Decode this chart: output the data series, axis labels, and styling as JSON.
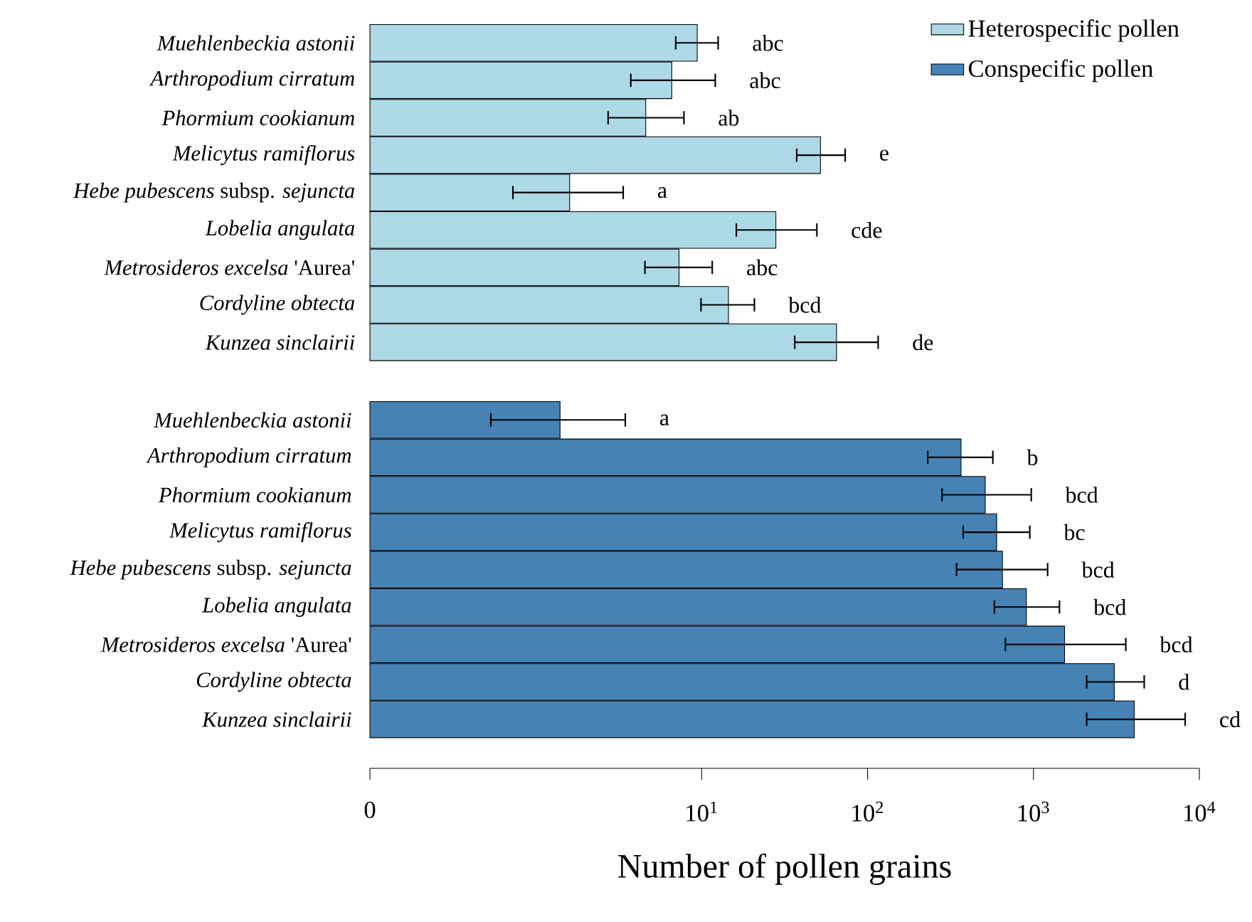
{
  "chart_data": [
    {
      "type": "bar",
      "orientation": "horizontal",
      "tick_labels": "y",
      "legend": "top right",
      "categories": [
        "*Muehlenbeckia astonii*",
        "*Arthropodium cirratum*",
        "*Phormium cookianum*",
        "*Melicytus ramiflorus*",
        "*Hebe pubescens* subsp. *sejuncta*",
        "*Lobelia angulata*",
        "*Metrosideros excelsa* 'Aurea'",
        "*Cordyline obtecta*",
        "*Kunzea sinclairii*"
      ],
      "series": [
        {
          "name": "Heterospecific pollen",
          "color": "#add8e6",
          "values": [
            9.4,
            6.6,
            4.6,
            52,
            1.6,
            28,
            7.3,
            14.5,
            65
          ],
          "errors": [
            [
              6.9,
              12.7
            ],
            [
              3.7,
              12.2
            ],
            [
              2.7,
              7.9
            ],
            [
              37,
              74
            ],
            [
              0.72,
              3.4
            ],
            [
              16,
              50
            ],
            [
              4.5,
              11.7
            ],
            [
              9.8,
              21
            ],
            [
              36,
              117
            ]
          ]
        }
      ],
      "log": "x",
      "xlim": [
        0.1,
        10000
      ],
      "annotations": [
        {
          "text": "abc",
          "x": 12.7,
          "y": "*Muehlenbeckia astonii*"
        },
        {
          "text": "abc",
          "x": 12.2,
          "y": "*Arthropodium cirratum*"
        },
        {
          "text": "ab",
          "x": 7.9,
          "y": "*Phormium cookianum*"
        },
        {
          "text": "e",
          "x": 74,
          "y": "*Melicytus ramiflorus*"
        },
        {
          "text": "a",
          "x": 3.4,
          "y": "*Hebe pubescens* subsp. *sejuncta*"
        },
        {
          "text": "cde",
          "x": 50,
          "y": "*Lobelia angulata*"
        },
        {
          "text": "abc",
          "x": 11.7,
          "y": "*Metrosideros excelsa* 'Aurea'"
        },
        {
          "text": "bcd",
          "x": 21,
          "y": "*Cordyline obtecta*"
        },
        {
          "text": "de",
          "x": 117,
          "y": "*Kunzea sinclairii*"
        }
      ]
    },
    {
      "type": "bar",
      "orientation": "horizontal",
      "legend": "top right",
      "xlabel": "Number of pollen grains",
      "categories": [
        "*Muehlenbeckia astonii*",
        "*Arthropodium cirratum*",
        "*Phormium cookianum*",
        "*Melicytus ramiflorus*",
        "*Hebe pubescens* subsp. *sejuncta*",
        "*Lobelia angulata*",
        "*Metrosideros excelsa* 'Aurea'",
        "*Cordyline obtecta*",
        "*Kunzea sinclairii*"
      ],
      "series": [
        {
          "name": "Conspecific pollen",
          "color": "#4682b4",
          "values": [
            1.4,
            366,
            512,
            600,
            650,
            906,
            1540,
            3070,
            4050
          ],
          "errors": [
            [
              0.53,
              3.5
            ],
            [
              228,
              575
            ],
            [
              278,
              980
            ],
            [
              373,
              960
            ],
            [
              340,
              1230
            ],
            [
              575,
              1450
            ],
            [
              670,
              3640
            ],
            [
              2070,
              4700
            ],
            [
              2070,
              8300
            ]
          ]
        }
      ],
      "log": "x",
      "xlim": [
        0.1,
        10000
      ],
      "xticks": [
        {
          "value": 0.1,
          "label": "0"
        },
        {
          "value": 10,
          "label": "10$^{1}$"
        },
        {
          "value": 100,
          "label": "10$^{2}$"
        },
        {
          "value": 1000,
          "label": "10$^{3}$"
        },
        {
          "value": 10000,
          "label": "10$^{4}$"
        }
      ],
      "annotations": [
        {
          "text": "a",
          "x": 3.5,
          "y": "*Muehlenbeckia astonii*"
        },
        {
          "text": "b",
          "x": 575,
          "y": "*Arthropodium cirratum*"
        },
        {
          "text": "bcd",
          "x": 980,
          "y": "*Phormium cookianum*"
        },
        {
          "text": "bc",
          "x": 960,
          "y": "*Melicytus ramiflorus*"
        },
        {
          "text": "bcd",
          "x": 1230,
          "y": "*Hebe pubescens* subsp. *sejuncta*"
        },
        {
          "text": "bcd",
          "x": 1450,
          "y": "*Lobelia angulata*"
        },
        {
          "text": "bcd",
          "x": 3640,
          "y": "*Metrosideros excelsa* 'Aurea'"
        },
        {
          "text": "d",
          "x": 4700,
          "y": "*Cordyline obtecta*"
        },
        {
          "text": "cd",
          "x": 8300,
          "y": "*Kunzea sinclairii*"
        }
      ]
    }
  ]
}
